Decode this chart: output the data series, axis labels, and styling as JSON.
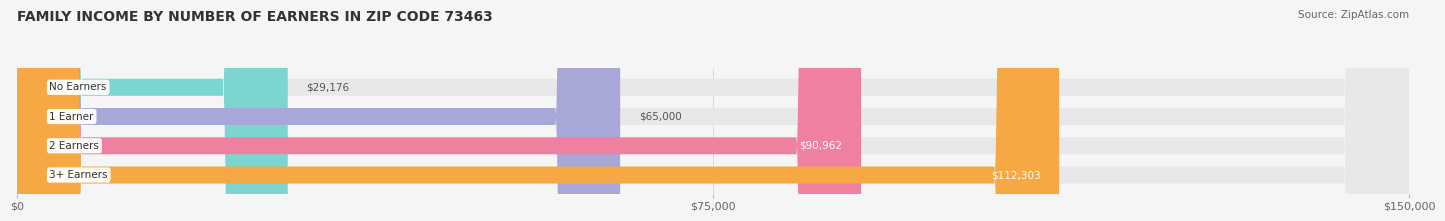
{
  "title": "FAMILY INCOME BY NUMBER OF EARNERS IN ZIP CODE 73463",
  "source": "Source: ZipAtlas.com",
  "categories": [
    "No Earners",
    "1 Earner",
    "2 Earners",
    "3+ Earners"
  ],
  "values": [
    29176,
    65000,
    90962,
    112303
  ],
  "labels": [
    "$29,176",
    "$65,000",
    "$90,962",
    "$112,303"
  ],
  "bar_colors": [
    "#7dd5d0",
    "#a8a8d8",
    "#f080a0",
    "#f5a843"
  ],
  "label_text_colors": [
    "#555555",
    "#555555",
    "#ffffff",
    "#ffffff"
  ],
  "x_max": 150000,
  "x_ticks": [
    0,
    75000,
    150000
  ],
  "x_tick_labels": [
    "$0",
    "$75,000",
    "$150,000"
  ],
  "fig_bg_color": "#f5f5f5",
  "title_fontsize": 10,
  "source_fontsize": 7.5,
  "bar_height": 0.58,
  "title_color": "#333333",
  "source_color": "#666666"
}
